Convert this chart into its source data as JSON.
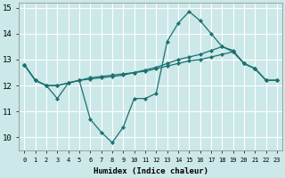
{
  "xlabel": "Humidex (Indice chaleur)",
  "background_color": "#cce8e8",
  "grid_color": "#ffffff",
  "line_color": "#1a7070",
  "x_values": [
    0,
    1,
    2,
    3,
    4,
    5,
    6,
    7,
    8,
    9,
    10,
    11,
    12,
    13,
    14,
    15,
    16,
    17,
    18,
    19,
    20,
    21,
    22,
    23
  ],
  "line1": [
    12.8,
    12.2,
    12.0,
    11.5,
    12.1,
    12.2,
    10.7,
    10.2,
    9.8,
    10.4,
    11.5,
    11.5,
    11.7,
    13.7,
    14.4,
    14.85,
    14.5,
    14.0,
    13.5,
    13.3,
    12.85,
    12.65,
    12.2,
    12.2
  ],
  "line2": [
    12.8,
    12.2,
    12.0,
    12.0,
    12.1,
    12.2,
    12.25,
    12.3,
    12.35,
    12.4,
    12.5,
    12.55,
    12.65,
    12.75,
    12.85,
    12.95,
    13.0,
    13.1,
    13.2,
    13.3,
    12.85,
    12.65,
    12.2,
    12.2
  ],
  "line3": [
    12.8,
    12.2,
    12.0,
    12.0,
    12.1,
    12.2,
    12.3,
    12.35,
    12.4,
    12.45,
    12.5,
    12.6,
    12.7,
    12.85,
    13.0,
    13.1,
    13.2,
    13.35,
    13.5,
    13.35,
    12.85,
    12.65,
    12.2,
    12.2
  ],
  "ylim": [
    9.5,
    15.2
  ],
  "xlim": [
    -0.5,
    23.5
  ],
  "yticks": [
    10,
    11,
    12,
    13,
    14,
    15
  ],
  "xticks": [
    0,
    1,
    2,
    3,
    4,
    5,
    6,
    7,
    8,
    9,
    10,
    11,
    12,
    13,
    14,
    15,
    16,
    17,
    18,
    19,
    20,
    21,
    22,
    23
  ]
}
